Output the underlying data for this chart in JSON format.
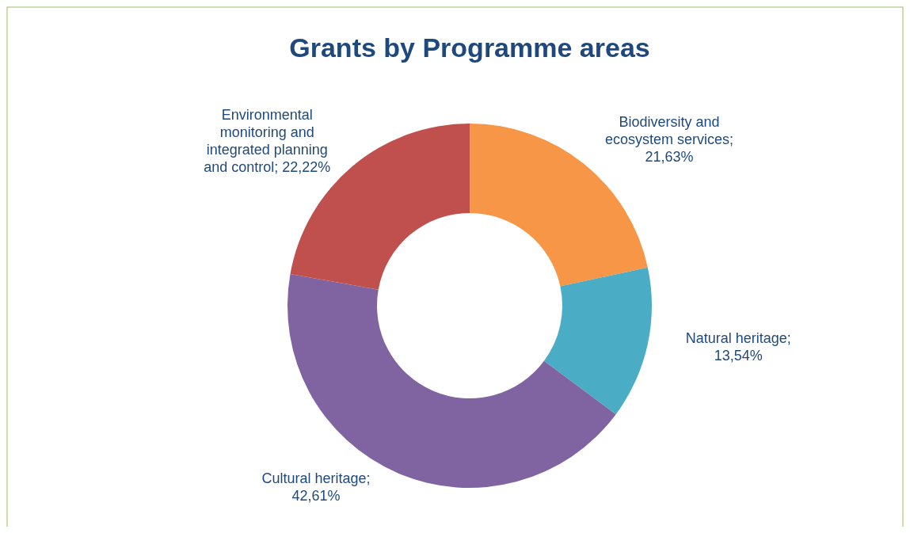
{
  "chart_data": {
    "type": "donut",
    "title": "Grants by Programme areas",
    "categories": [
      "Biodiversity and ecosystem services",
      "Natural heritage",
      "Cultural heritage",
      "Environmental monitoring and integrated planning and control"
    ],
    "values": [
      21.63,
      13.54,
      42.61,
      22.22
    ],
    "value_labels": [
      "; 21,63%",
      "; 13,54%",
      "; 42,61%",
      "; 22,22%"
    ],
    "colors": [
      "#f79646",
      "#4bacc6",
      "#8064a2",
      "#c0504d"
    ]
  }
}
